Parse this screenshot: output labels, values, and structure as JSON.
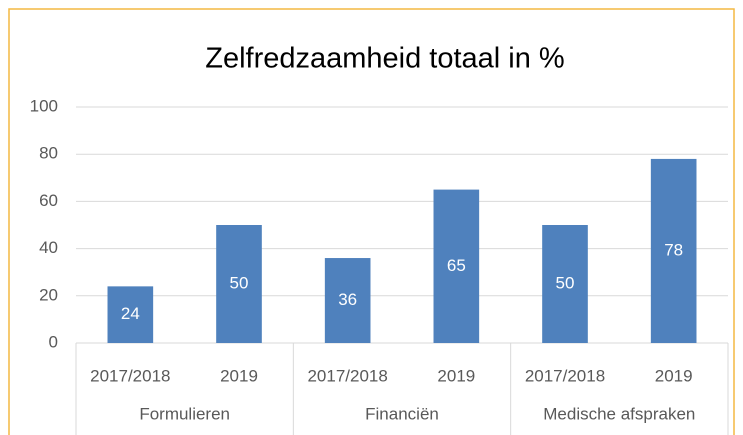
{
  "chart_data": {
    "type": "bar",
    "title": "Zelfredzaamheid totaal in %",
    "categories": [
      "2017/2018",
      "2019",
      "2017/2018",
      "2019",
      "2017/2018",
      "2019"
    ],
    "groups": [
      "Formulieren",
      "Financiën",
      "Medische afspraken"
    ],
    "values": [
      24,
      50,
      36,
      65,
      50,
      78
    ],
    "color": "#4f81bd",
    "ylim": [
      0,
      100
    ],
    "yticks": [
      0,
      20,
      40,
      60,
      80,
      100
    ],
    "grid": true
  }
}
